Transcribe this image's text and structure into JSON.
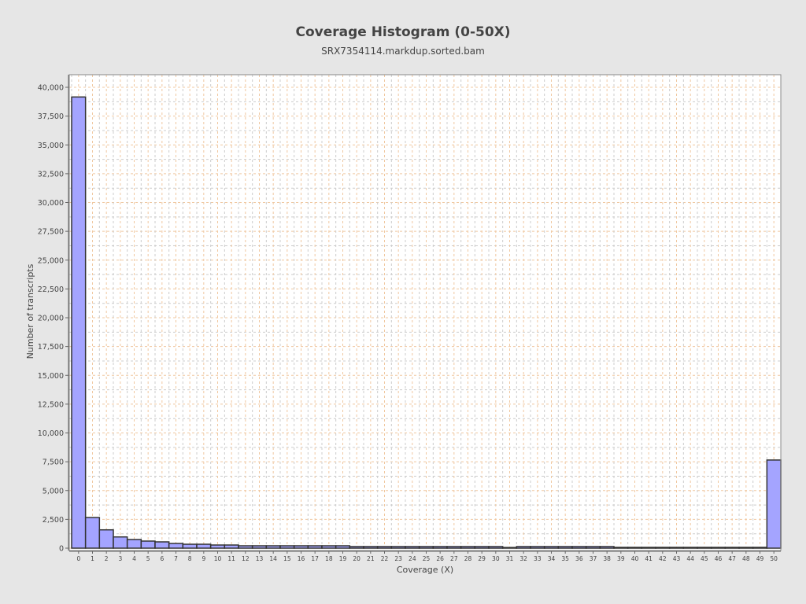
{
  "chart_data": {
    "type": "bar",
    "title": "Coverage Histogram (0-50X)",
    "subtitle": "SRX7354114.markdup.sorted.bam",
    "xlabel": "Coverage (X)",
    "ylabel": "Number of transcripts",
    "categories": [
      "0",
      "1",
      "2",
      "3",
      "4",
      "5",
      "6",
      "7",
      "8",
      "9",
      "10",
      "11",
      "12",
      "13",
      "14",
      "15",
      "16",
      "17",
      "18",
      "19",
      "20",
      "21",
      "22",
      "23",
      "24",
      "25",
      "26",
      "27",
      "28",
      "29",
      "30",
      "31",
      "32",
      "33",
      "34",
      "35",
      "36",
      "37",
      "38",
      "39",
      "40",
      "41",
      "42",
      "43",
      "44",
      "45",
      "46",
      "47",
      "48",
      "49",
      "50"
    ],
    "values": [
      39160,
      2660,
      1590,
      975,
      750,
      615,
      546,
      410,
      340,
      340,
      273,
      273,
      205,
      205,
      205,
      205,
      205,
      205,
      205,
      205,
      140,
      140,
      140,
      140,
      140,
      140,
      140,
      140,
      140,
      140,
      140,
      60,
      140,
      140,
      140,
      140,
      140,
      140,
      140,
      70,
      70,
      70,
      70,
      70,
      70,
      70,
      70,
      70,
      70,
      70,
      7650
    ],
    "ylim": [
      0,
      41200
    ],
    "yticks": [
      0,
      2500,
      5000,
      7500,
      10000,
      12500,
      15000,
      17500,
      20000,
      22500,
      25000,
      27500,
      30000,
      32500,
      35000,
      37500,
      40000
    ],
    "ytick_labels": [
      "0",
      "2,500",
      "5,000",
      "7,500",
      "10,000",
      "12,500",
      "15,000",
      "17,500",
      "20,000",
      "22,500",
      "25,000",
      "27,500",
      "30,000",
      "32,500",
      "35,000",
      "37,500",
      "40,000"
    ],
    "grid": true,
    "colors": {
      "bar": "#a4a4ff",
      "bar_edge": "#333333",
      "grid_major": "#f0c8a0",
      "grid_minor": "#cccccc",
      "background": "#e6e6e6",
      "plot_bg": "#ffffff"
    }
  }
}
